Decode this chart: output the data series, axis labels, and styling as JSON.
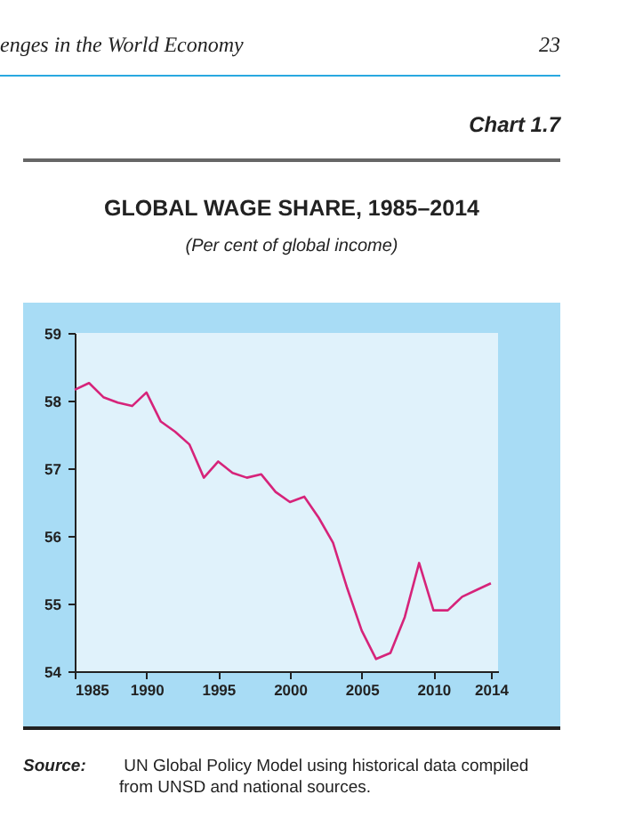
{
  "chart_data": {
    "type": "line",
    "title": "GLOBAL WAGE SHARE, 1985–2014",
    "subtitle": "(Per cent of global income)",
    "annotations": [
      "enges in the World Economy",
      "23",
      "Chart 1.7",
      "Source: UN Global Policy Model using historical data compiled from UNSD and national sources."
    ],
    "x": [
      1985,
      1986,
      1987,
      1988,
      1989,
      1990,
      1991,
      1992,
      1993,
      1994,
      1995,
      1996,
      1997,
      1998,
      1999,
      2000,
      2001,
      2002,
      2003,
      2004,
      2005,
      2006,
      2007,
      2008,
      2009,
      2010,
      2011,
      2012,
      2013,
      2014
    ],
    "series": [
      {
        "color": "#d6247a",
        "values": [
          58.16,
          58.26,
          58.05,
          57.97,
          57.92,
          58.12,
          57.69,
          57.54,
          57.35,
          56.86,
          57.1,
          56.93,
          56.86,
          56.91,
          56.65,
          56.5,
          56.58,
          56.27,
          55.9,
          55.22,
          54.6,
          54.18,
          54.27,
          54.8,
          55.6,
          54.9,
          54.9,
          55.1,
          55.2,
          55.3
        ]
      }
    ],
    "xlim": [
      1985,
      2014.5
    ],
    "xticks": [
      1985,
      1990,
      1995,
      2000,
      2005,
      2010,
      2014
    ],
    "ylim": [
      54,
      59
    ],
    "yticks": [
      54,
      55,
      56,
      57,
      58,
      59
    ],
    "grid": false,
    "legend": false,
    "marker": "none",
    "line_style": "solid"
  }
}
